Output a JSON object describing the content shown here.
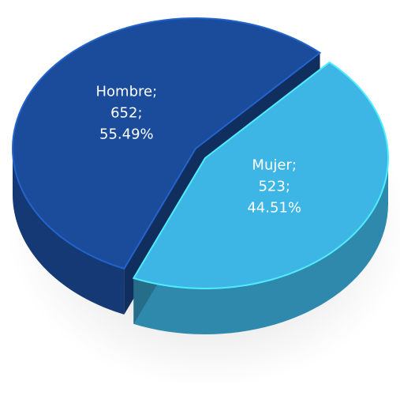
{
  "chart_data": {
    "type": "pie",
    "categories": [
      "Hombre",
      "Mujer"
    ],
    "values": [
      652,
      523
    ],
    "percentages": [
      55.49,
      44.51
    ],
    "percentage_labels": [
      "55.49%",
      "44.51%"
    ],
    "label_separator": ";",
    "colors": [
      "#1b4c9c",
      "#3db6e5"
    ]
  }
}
